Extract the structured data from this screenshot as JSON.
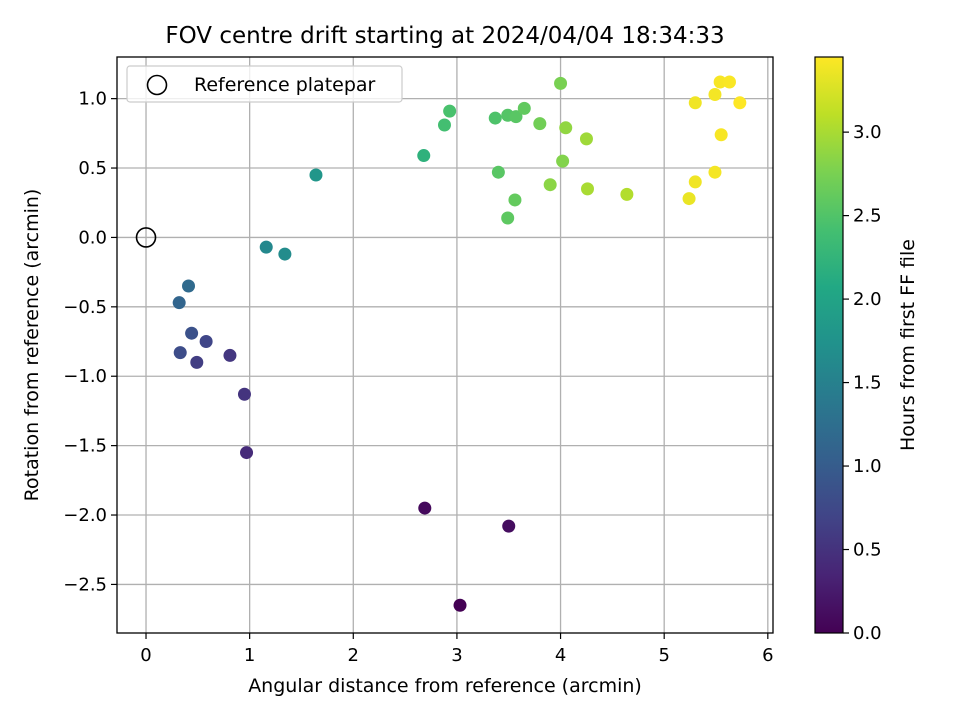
{
  "chart_data": {
    "type": "scatter",
    "title": "FOV centre drift starting at 2024/04/04 18:34:33",
    "xlabel": "Angular distance from reference (arcmin)",
    "ylabel": "Rotation from reference (arcmin)",
    "xlim": [
      -0.28,
      6.05
    ],
    "ylim": [
      -2.85,
      1.3
    ],
    "xticks": [
      0,
      1,
      2,
      3,
      4,
      5,
      6
    ],
    "xtick_labels": [
      "0",
      "1",
      "2",
      "3",
      "4",
      "5",
      "6"
    ],
    "yticks": [
      1.0,
      0.5,
      0.0,
      -0.5,
      -1.0,
      -1.5,
      -2.0,
      -2.5
    ],
    "ytick_labels": [
      "1.0",
      "0.5",
      "0.0",
      "−0.5",
      "−1.0",
      "−1.5",
      "−2.0",
      "−2.5"
    ],
    "grid": true,
    "legend": {
      "placement": "top-left",
      "entries": [
        "Reference platepar"
      ]
    },
    "reference_point": {
      "x": 0,
      "y": 0
    },
    "colorbar": {
      "label": "Hours from first FF file",
      "range": [
        0,
        3.45
      ],
      "ticks": [
        0.0,
        0.5,
        1.0,
        1.5,
        2.0,
        2.5,
        3.0
      ],
      "tick_labels": [
        "0.0",
        "0.5",
        "1.0",
        "1.5",
        "2.0",
        "2.5",
        "3.0"
      ],
      "colormap": "viridis"
    },
    "points": [
      {
        "x": 3.03,
        "y": -2.65,
        "c": 0.0
      },
      {
        "x": 2.69,
        "y": -1.95,
        "c": 0.08
      },
      {
        "x": 3.5,
        "y": -2.08,
        "c": 0.12
      },
      {
        "x": 0.97,
        "y": -1.55,
        "c": 0.42
      },
      {
        "x": 0.95,
        "y": -1.13,
        "c": 0.52
      },
      {
        "x": 0.81,
        "y": -0.85,
        "c": 0.55
      },
      {
        "x": 0.49,
        "y": -0.9,
        "c": 0.62
      },
      {
        "x": 0.58,
        "y": -0.75,
        "c": 0.72
      },
      {
        "x": 0.33,
        "y": -0.83,
        "c": 0.8
      },
      {
        "x": 0.44,
        "y": -0.69,
        "c": 0.85
      },
      {
        "x": 0.32,
        "y": -0.47,
        "c": 1.12
      },
      {
        "x": 0.41,
        "y": -0.35,
        "c": 1.18
      },
      {
        "x": 1.16,
        "y": -0.07,
        "c": 1.6
      },
      {
        "x": 1.34,
        "y": -0.12,
        "c": 1.65
      },
      {
        "x": 1.64,
        "y": 0.45,
        "c": 1.8
      },
      {
        "x": 2.68,
        "y": 0.59,
        "c": 2.2
      },
      {
        "x": 2.88,
        "y": 0.81,
        "c": 2.4
      },
      {
        "x": 2.93,
        "y": 0.91,
        "c": 2.45
      },
      {
        "x": 3.37,
        "y": 0.86,
        "c": 2.48
      },
      {
        "x": 3.49,
        "y": 0.88,
        "c": 2.52
      },
      {
        "x": 3.57,
        "y": 0.87,
        "c": 2.55
      },
      {
        "x": 3.65,
        "y": 0.93,
        "c": 2.6
      },
      {
        "x": 3.4,
        "y": 0.47,
        "c": 2.55
      },
      {
        "x": 3.56,
        "y": 0.27,
        "c": 2.62
      },
      {
        "x": 3.49,
        "y": 0.14,
        "c": 2.58
      },
      {
        "x": 3.8,
        "y": 0.82,
        "c": 2.7
      },
      {
        "x": 4.0,
        "y": 1.11,
        "c": 2.75
      },
      {
        "x": 4.02,
        "y": 0.55,
        "c": 2.8
      },
      {
        "x": 4.05,
        "y": 0.79,
        "c": 2.88
      },
      {
        "x": 3.9,
        "y": 0.38,
        "c": 2.85
      },
      {
        "x": 4.25,
        "y": 0.71,
        "c": 2.95
      },
      {
        "x": 4.26,
        "y": 0.35,
        "c": 3.0
      },
      {
        "x": 4.64,
        "y": 0.31,
        "c": 3.05
      },
      {
        "x": 5.24,
        "y": 0.28,
        "c": 3.35
      },
      {
        "x": 5.3,
        "y": 0.97,
        "c": 3.38
      },
      {
        "x": 5.3,
        "y": 0.4,
        "c": 3.38
      },
      {
        "x": 5.49,
        "y": 1.03,
        "c": 3.4
      },
      {
        "x": 5.49,
        "y": 0.47,
        "c": 3.4
      },
      {
        "x": 5.54,
        "y": 1.12,
        "c": 3.42
      },
      {
        "x": 5.55,
        "y": 0.74,
        "c": 3.42
      },
      {
        "x": 5.63,
        "y": 1.12,
        "c": 3.43
      },
      {
        "x": 5.73,
        "y": 0.97,
        "c": 3.45
      }
    ]
  }
}
